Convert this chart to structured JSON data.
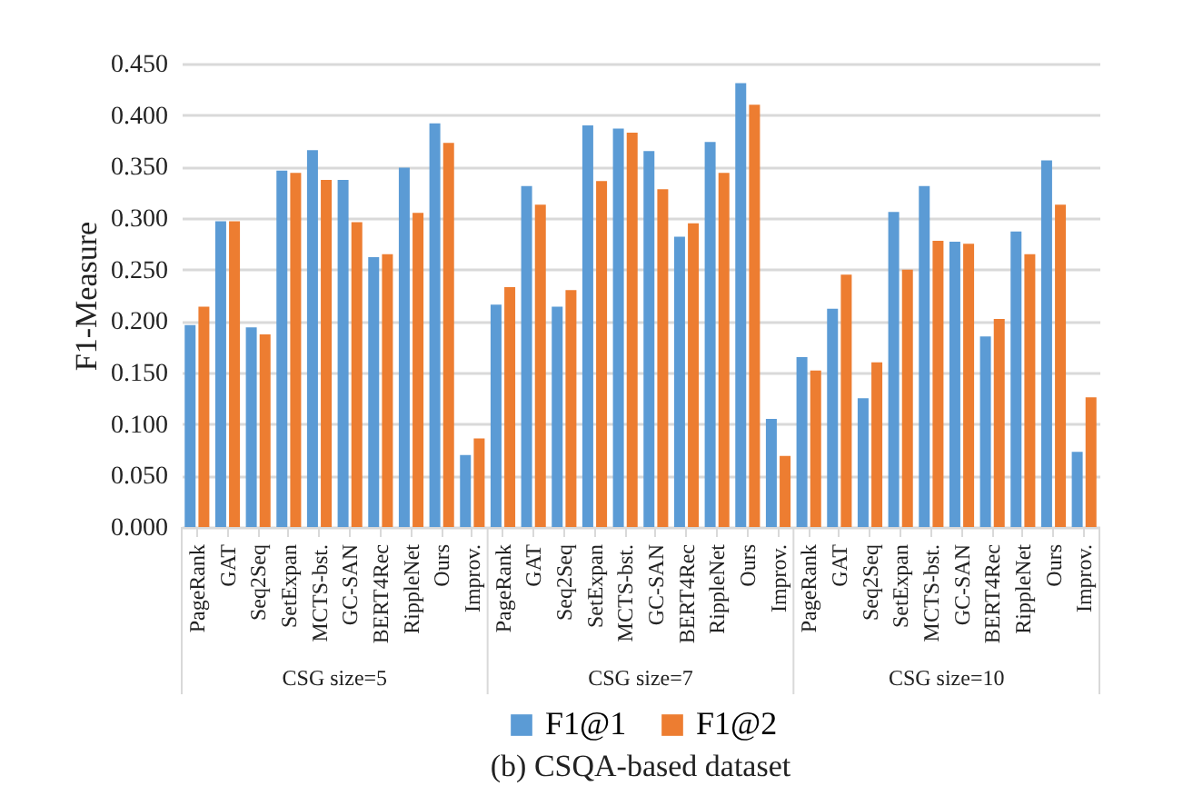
{
  "chart_data": {
    "type": "bar",
    "title": "(b) CSQA-based dataset",
    "ylabel": "F1-Measure",
    "categories": [
      "PageRank",
      "GAT",
      "Seq2Seq",
      "SetExpan",
      "MCTS-bst.",
      "GC-SAN",
      "BERT4Rec",
      "RippleNet",
      "Ours",
      "Improv.",
      "PageRank",
      "GAT",
      "Seq2Seq",
      "SetExpan",
      "MCTS-bst.",
      "GC-SAN",
      "BERT4Rec",
      "RippleNet",
      "Ours",
      "Improv.",
      "PageRank",
      "GAT",
      "Seq2Seq",
      "SetExpan",
      "MCTS-bst.",
      "GC-SAN",
      "BERT4Rec",
      "RippleNet",
      "Ours",
      "Improv."
    ],
    "series": [
      {
        "name": "F1@1",
        "color": "#5b9bd5",
        "values": [
          0.196,
          0.297,
          0.194,
          0.346,
          0.366,
          0.337,
          0.262,
          0.349,
          0.392,
          0.07,
          0.216,
          0.331,
          0.214,
          0.39,
          0.387,
          0.365,
          0.282,
          0.374,
          0.431,
          0.105,
          0.165,
          0.212,
          0.125,
          0.306,
          0.331,
          0.277,
          0.185,
          0.287,
          0.356,
          0.073
        ]
      },
      {
        "name": "F1@2",
        "color": "#ed7d31",
        "values": [
          0.214,
          0.297,
          0.187,
          0.344,
          0.337,
          0.296,
          0.265,
          0.305,
          0.373,
          0.086,
          0.233,
          0.313,
          0.23,
          0.336,
          0.383,
          0.328,
          0.295,
          0.344,
          0.41,
          0.069,
          0.152,
          0.245,
          0.16,
          0.25,
          0.278,
          0.275,
          0.202,
          0.265,
          0.313,
          0.126
        ]
      }
    ],
    "annotations": [
      "CSG size=5",
      "CSG size=7",
      "CSG size=10"
    ],
    "ylim": [
      0,
      0.45
    ],
    "yticks": [
      {
        "value": 0,
        "label": "0.000"
      },
      {
        "value": 0.05,
        "label": "0.050"
      },
      {
        "value": 0.1,
        "label": "0.100"
      },
      {
        "value": 0.15,
        "label": "0.150"
      },
      {
        "value": 0.2,
        "label": "0.200"
      },
      {
        "value": 0.25,
        "label": "0.250"
      },
      {
        "value": 0.3,
        "label": "0.300"
      },
      {
        "value": 0.35,
        "label": "0.350"
      },
      {
        "value": 0.4,
        "label": "0.400"
      },
      {
        "value": 0.45,
        "label": "0.450"
      }
    ],
    "grid": "y",
    "legend": "bottom"
  }
}
